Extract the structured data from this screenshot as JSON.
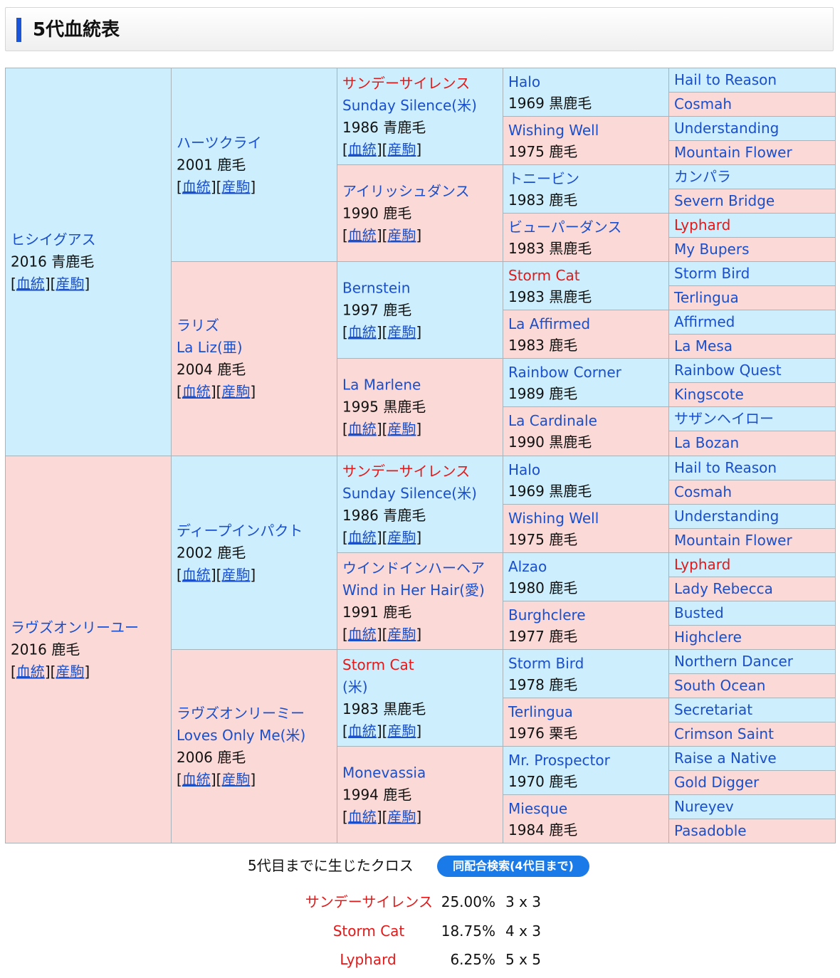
{
  "header": {
    "title": "5代血統表"
  },
  "pedigree": {
    "gen1": [
      {
        "name": "ヒシイグアス",
        "eng": "",
        "info": "2016 青鹿毛",
        "sex": "m",
        "red": false,
        "links": true
      },
      {
        "name": "ラヴズオンリーユー",
        "eng": "",
        "info": "2016 鹿毛",
        "sex": "f",
        "red": false,
        "links": true
      }
    ],
    "gen2": [
      {
        "name": "ハーツクライ",
        "eng": "",
        "info": "2001 鹿毛",
        "sex": "m",
        "red": false,
        "links": true
      },
      {
        "name": "ラリズ",
        "eng": "La Liz(亜)",
        "info": "2004 鹿毛",
        "sex": "f",
        "red": false,
        "links": true
      },
      {
        "name": "ディープインパクト",
        "eng": "",
        "info": "2002 鹿毛",
        "sex": "m",
        "red": false,
        "links": true
      },
      {
        "name": "ラヴズオンリーミー",
        "eng": "Loves Only Me(米)",
        "info": "2006 鹿毛",
        "sex": "f",
        "red": false,
        "links": true
      }
    ],
    "gen3": [
      {
        "name": "サンデーサイレンス",
        "eng": "Sunday Silence(米)",
        "info": "1986 青鹿毛",
        "sex": "m",
        "red": true,
        "links": true
      },
      {
        "name": "アイリッシュダンス",
        "eng": "",
        "info": "1990 鹿毛",
        "sex": "f",
        "red": false,
        "links": true
      },
      {
        "name": "Bernstein",
        "eng": "",
        "info": "1997 鹿毛",
        "sex": "m",
        "red": false,
        "links": true
      },
      {
        "name": "La Marlene",
        "eng": "",
        "info": "1995 黒鹿毛",
        "sex": "f",
        "red": false,
        "links": true
      },
      {
        "name": "サンデーサイレンス",
        "eng": "Sunday Silence(米)",
        "info": "1986 青鹿毛",
        "sex": "m",
        "red": true,
        "links": true
      },
      {
        "name": "ウインドインハーヘア",
        "eng": "Wind in Her Hair(愛)",
        "info": "1991 鹿毛",
        "sex": "f",
        "red": false,
        "links": true
      },
      {
        "name": "Storm Cat",
        "eng": "(米)",
        "info": "1983 黒鹿毛",
        "sex": "m",
        "red": true,
        "links": true
      },
      {
        "name": "Monevassia",
        "eng": "",
        "info": "1994 鹿毛",
        "sex": "f",
        "red": false,
        "links": true
      }
    ],
    "gen4": [
      {
        "name": "Halo",
        "info": "1969 黒鹿毛",
        "sex": "m",
        "red": false
      },
      {
        "name": "Wishing Well",
        "info": "1975 鹿毛",
        "sex": "f",
        "red": false
      },
      {
        "name": "トニービン",
        "info": "1983 鹿毛",
        "sex": "m",
        "red": false
      },
      {
        "name": "ビューパーダンス",
        "info": "1983 黒鹿毛",
        "sex": "f",
        "red": false
      },
      {
        "name": "Storm Cat",
        "info": "1983 黒鹿毛",
        "sex": "m",
        "red": true
      },
      {
        "name": "La Affirmed",
        "info": "1983 鹿毛",
        "sex": "f",
        "red": false
      },
      {
        "name": "Rainbow Corner",
        "info": "1989 鹿毛",
        "sex": "m",
        "red": false
      },
      {
        "name": "La Cardinale",
        "info": "1990 黒鹿毛",
        "sex": "f",
        "red": false
      },
      {
        "name": "Halo",
        "info": "1969 黒鹿毛",
        "sex": "m",
        "red": false
      },
      {
        "name": "Wishing Well",
        "info": "1975 鹿毛",
        "sex": "f",
        "red": false
      },
      {
        "name": "Alzao",
        "info": "1980 鹿毛",
        "sex": "m",
        "red": false
      },
      {
        "name": "Burghclere",
        "info": "1977 鹿毛",
        "sex": "f",
        "red": false
      },
      {
        "name": "Storm Bird",
        "info": "1978 鹿毛",
        "sex": "m",
        "red": false
      },
      {
        "name": "Terlingua",
        "info": "1976 栗毛",
        "sex": "f",
        "red": false
      },
      {
        "name": "Mr. Prospector",
        "info": "1970 鹿毛",
        "sex": "m",
        "red": false
      },
      {
        "name": "Miesque",
        "info": "1984 鹿毛",
        "sex": "f",
        "red": false
      }
    ],
    "gen5": [
      {
        "name": "Hail to Reason",
        "sex": "m",
        "red": false
      },
      {
        "name": "Cosmah",
        "sex": "f",
        "red": false
      },
      {
        "name": "Understanding",
        "sex": "m",
        "red": false
      },
      {
        "name": "Mountain Flower",
        "sex": "f",
        "red": false
      },
      {
        "name": "カンパラ",
        "sex": "m",
        "red": false
      },
      {
        "name": "Severn Bridge",
        "sex": "f",
        "red": false
      },
      {
        "name": "Lyphard",
        "sex": "m",
        "red": true
      },
      {
        "name": "My Bupers",
        "sex": "f",
        "red": false
      },
      {
        "name": "Storm Bird",
        "sex": "m",
        "red": false
      },
      {
        "name": "Terlingua",
        "sex": "f",
        "red": false
      },
      {
        "name": "Affirmed",
        "sex": "m",
        "red": false
      },
      {
        "name": "La Mesa",
        "sex": "f",
        "red": false
      },
      {
        "name": "Rainbow Quest",
        "sex": "m",
        "red": false
      },
      {
        "name": "Kingscote",
        "sex": "f",
        "red": false
      },
      {
        "name": "サザンヘイロー",
        "sex": "m",
        "red": false
      },
      {
        "name": "La Bozan",
        "sex": "f",
        "red": false
      },
      {
        "name": "Hail to Reason",
        "sex": "m",
        "red": false
      },
      {
        "name": "Cosmah",
        "sex": "f",
        "red": false
      },
      {
        "name": "Understanding",
        "sex": "m",
        "red": false
      },
      {
        "name": "Mountain Flower",
        "sex": "f",
        "red": false
      },
      {
        "name": "Lyphard",
        "sex": "m",
        "red": true
      },
      {
        "name": "Lady Rebecca",
        "sex": "f",
        "red": false
      },
      {
        "name": "Busted",
        "sex": "m",
        "red": false
      },
      {
        "name": "Highclere",
        "sex": "f",
        "red": false
      },
      {
        "name": "Northern Dancer",
        "sex": "m",
        "red": false
      },
      {
        "name": "South Ocean",
        "sex": "f",
        "red": false
      },
      {
        "name": "Secretariat",
        "sex": "m",
        "red": false
      },
      {
        "name": "Crimson Saint",
        "sex": "f",
        "red": false
      },
      {
        "name": "Raise a Native",
        "sex": "m",
        "red": false
      },
      {
        "name": "Gold Digger",
        "sex": "f",
        "red": false
      },
      {
        "name": "Nureyev",
        "sex": "m",
        "red": false
      },
      {
        "name": "Pasadoble",
        "sex": "f",
        "red": false
      }
    ],
    "link_pedigree_label": "血統",
    "link_offspring_label": "産駒"
  },
  "cross": {
    "heading": "5代目までに生じたクロス",
    "search_button": "同配合検索(4代目まで)",
    "rows": [
      {
        "name": "サンデーサイレンス",
        "percent": "25.00%",
        "generation": "3 x 3"
      },
      {
        "name": "Storm Cat",
        "percent": "18.75%",
        "generation": "4 x 3"
      },
      {
        "name": "Lyphard",
        "percent": "6.25%",
        "generation": "5 x 5"
      }
    ]
  },
  "colors": {
    "male_bg": "#cdeefc",
    "female_bg": "#fbd9d6",
    "link_blue": "#1a4fcc",
    "cross_red": "#e31818",
    "button_blue": "#1a7be8"
  }
}
